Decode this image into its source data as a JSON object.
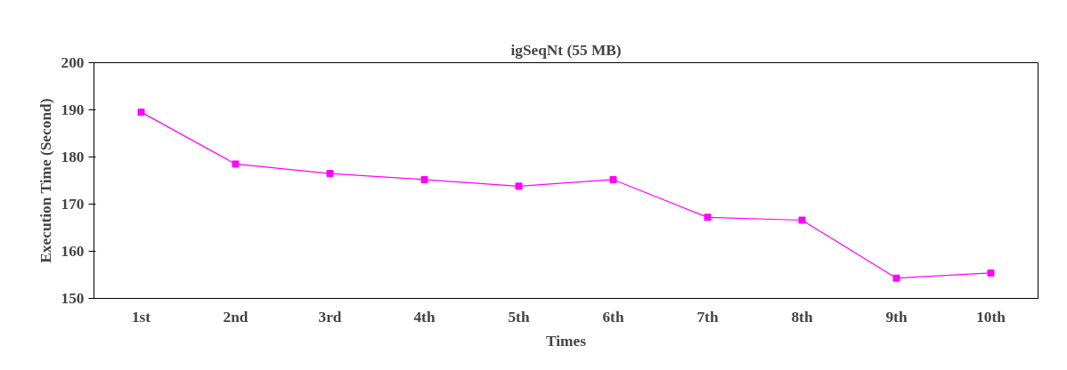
{
  "chart_data": {
    "type": "line",
    "title": "igSeqNt (55 MB)",
    "xlabel": "Times",
    "ylabel": "Execution Time (Second)",
    "categories": [
      "1st",
      "2nd",
      "3rd",
      "4th",
      "5th",
      "6th",
      "7th",
      "8th",
      "9th",
      "10th"
    ],
    "series": [
      {
        "color": "#ff00ff",
        "values": [
          189.5,
          178.5,
          176.5,
          175.2,
          173.8,
          175.2,
          167.2,
          166.6,
          154.3,
          155.4
        ]
      }
    ],
    "ylim": [
      150,
      200
    ],
    "yticks": [
      150,
      160,
      170,
      180,
      190,
      200
    ],
    "marker": "square",
    "line_style": "solid"
  }
}
